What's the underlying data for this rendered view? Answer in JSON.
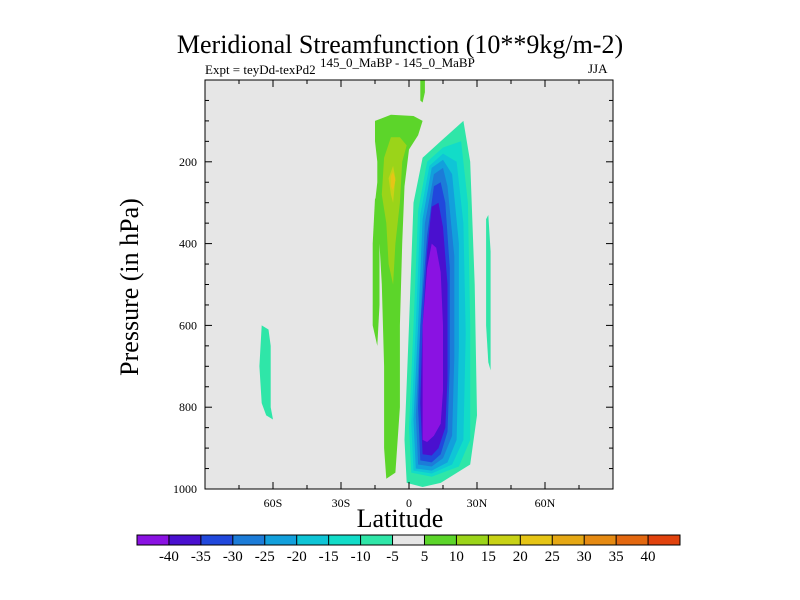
{
  "chart_data": {
    "type": "contour",
    "title": "Meridional Streamfunction (10**9kg/m-2)",
    "subtitle_left": "Expt = teyDd-texPd2",
    "subtitle_center": "145_0_MaBP - 145_0_MaBP",
    "subtitle_right": "JJA",
    "xlabel": "Latitude",
    "ylabel": "Pressure (in hPa)",
    "xlim": [
      -90,
      90
    ],
    "ylim": [
      1000,
      0
    ],
    "x_ticks": [
      {
        "value": -60,
        "label": "60S"
      },
      {
        "value": -30,
        "label": "30S"
      },
      {
        "value": 0,
        "label": "0"
      },
      {
        "value": 30,
        "label": "30N"
      },
      {
        "value": 60,
        "label": "60N"
      }
    ],
    "y_ticks": [
      {
        "value": 200,
        "label": "200"
      },
      {
        "value": 400,
        "label": "400"
      },
      {
        "value": 600,
        "label": "600"
      },
      {
        "value": 800,
        "label": "800"
      },
      {
        "value": 1000,
        "label": "1000"
      }
    ],
    "colorbar": {
      "levels": [
        -40,
        -35,
        -30,
        -25,
        -20,
        -15,
        -10,
        -5,
        5,
        10,
        15,
        20,
        25,
        30,
        35,
        40
      ],
      "colors": [
        "#8a12e2",
        "#4a10cf",
        "#2148dc",
        "#1c7cd8",
        "#12a0dc",
        "#0fc5d6",
        "#12dcc8",
        "#2fe6a8",
        "#e6e6e6",
        "#5cd52a",
        "#9bd419",
        "#c8d216",
        "#e6c516",
        "#e5a814",
        "#e58a12",
        "#e36810",
        "#e1420d"
      ]
    },
    "features": [
      {
        "sign": "negative",
        "lat_range": [
          -1,
          30
        ],
        "p_range": [
          990,
          95
        ],
        "min_value": -40,
        "note": "main cell, core near 10N 400-800 hPa"
      },
      {
        "sign": "positive",
        "lat_range": [
          -17,
          6
        ],
        "p_range": [
          980,
          85
        ],
        "max_value": 15,
        "note": "northward band, peak near 8S 250 hPa"
      },
      {
        "sign": "negative",
        "lat_range": [
          -66,
          -58
        ],
        "p_range": [
          820,
          600
        ],
        "min_value": -10,
        "note": "southern weak cell"
      },
      {
        "sign": "negative",
        "lat_range": [
          34,
          36
        ],
        "p_range": [
          710,
          340
        ],
        "min_value": -10,
        "note": "northern weak cell"
      },
      {
        "sign": "positive",
        "lat_range": [
          5,
          7
        ],
        "p_range": [
          55,
          0
        ],
        "max_value": 5,
        "note": "upper level filament"
      }
    ]
  }
}
